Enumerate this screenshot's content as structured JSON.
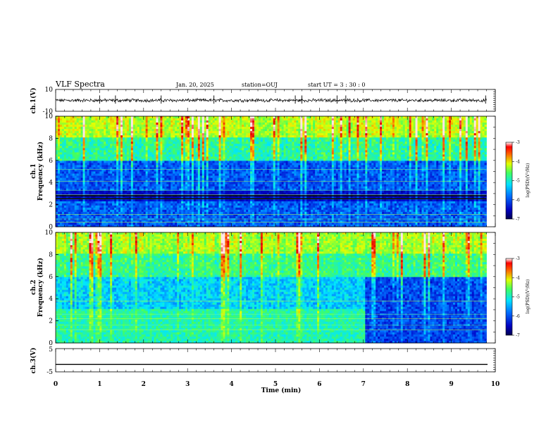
{
  "header": {
    "title": "VLF Spectra",
    "date": "Jan. 20, 2025",
    "station": "station=OUJ",
    "start": "start UT =  3 : 30 : 0"
  },
  "chart_data": [
    {
      "type": "line",
      "panel": "ch1-waveform",
      "ylabel": "ch.1(V)",
      "ylim": [
        -10,
        10
      ],
      "yticks": [
        "10",
        "-10"
      ],
      "xlim": [
        0,
        10
      ],
      "baseline": 0,
      "spike_times": [
        1.0,
        1.36,
        2.4,
        3.6,
        5.45,
        5.6,
        6.4,
        6.6,
        9.78
      ]
    },
    {
      "type": "heatmap",
      "panel": "ch1-spectrogram",
      "ylabel": "ch.1\nFrequency (kHz)",
      "ylim": [
        0,
        10
      ],
      "yticks": [
        "0",
        "2",
        "4",
        "6",
        "8",
        "10"
      ],
      "xlim": [
        0,
        9.8
      ],
      "colorbar_label": "log(PSD)(V²/Hz)",
      "colorbar_ticks": [
        "-3",
        "-4",
        "-5",
        "-6",
        "-7"
      ],
      "clim": [
        -7,
        -3
      ]
    },
    {
      "type": "heatmap",
      "panel": "ch2-spectrogram",
      "ylabel": "ch.2\nFrequency (kHz)",
      "ylim": [
        0,
        10
      ],
      "yticks": [
        "0",
        "2",
        "4",
        "6",
        "8",
        "10"
      ],
      "xlim": [
        0,
        9.8
      ],
      "change_time": 7.0,
      "colorbar_label": "log(PSD)(V²/Hz)",
      "colorbar_ticks": [
        "-3",
        "-4",
        "-5",
        "-6",
        "-7"
      ],
      "clim": [
        -7,
        -3
      ]
    },
    {
      "type": "line",
      "panel": "ch3-waveform",
      "ylabel": "ch.3(V)",
      "ylim": [
        -5,
        5
      ],
      "yticks": [
        "5",
        "-5"
      ],
      "xlim": [
        0,
        10
      ],
      "level": -1.8
    }
  ],
  "xaxis": {
    "label": "Time (min)",
    "ticks": [
      "0",
      "1",
      "2",
      "3",
      "4",
      "5",
      "6",
      "7",
      "8",
      "9",
      "10"
    ]
  },
  "colors": {
    "jet": [
      "#00008f",
      "#0000ff",
      "#0080ff",
      "#00ffff",
      "#80ff80",
      "#ffff00",
      "#ff8000",
      "#ff0000",
      "#ffc0c0"
    ]
  }
}
